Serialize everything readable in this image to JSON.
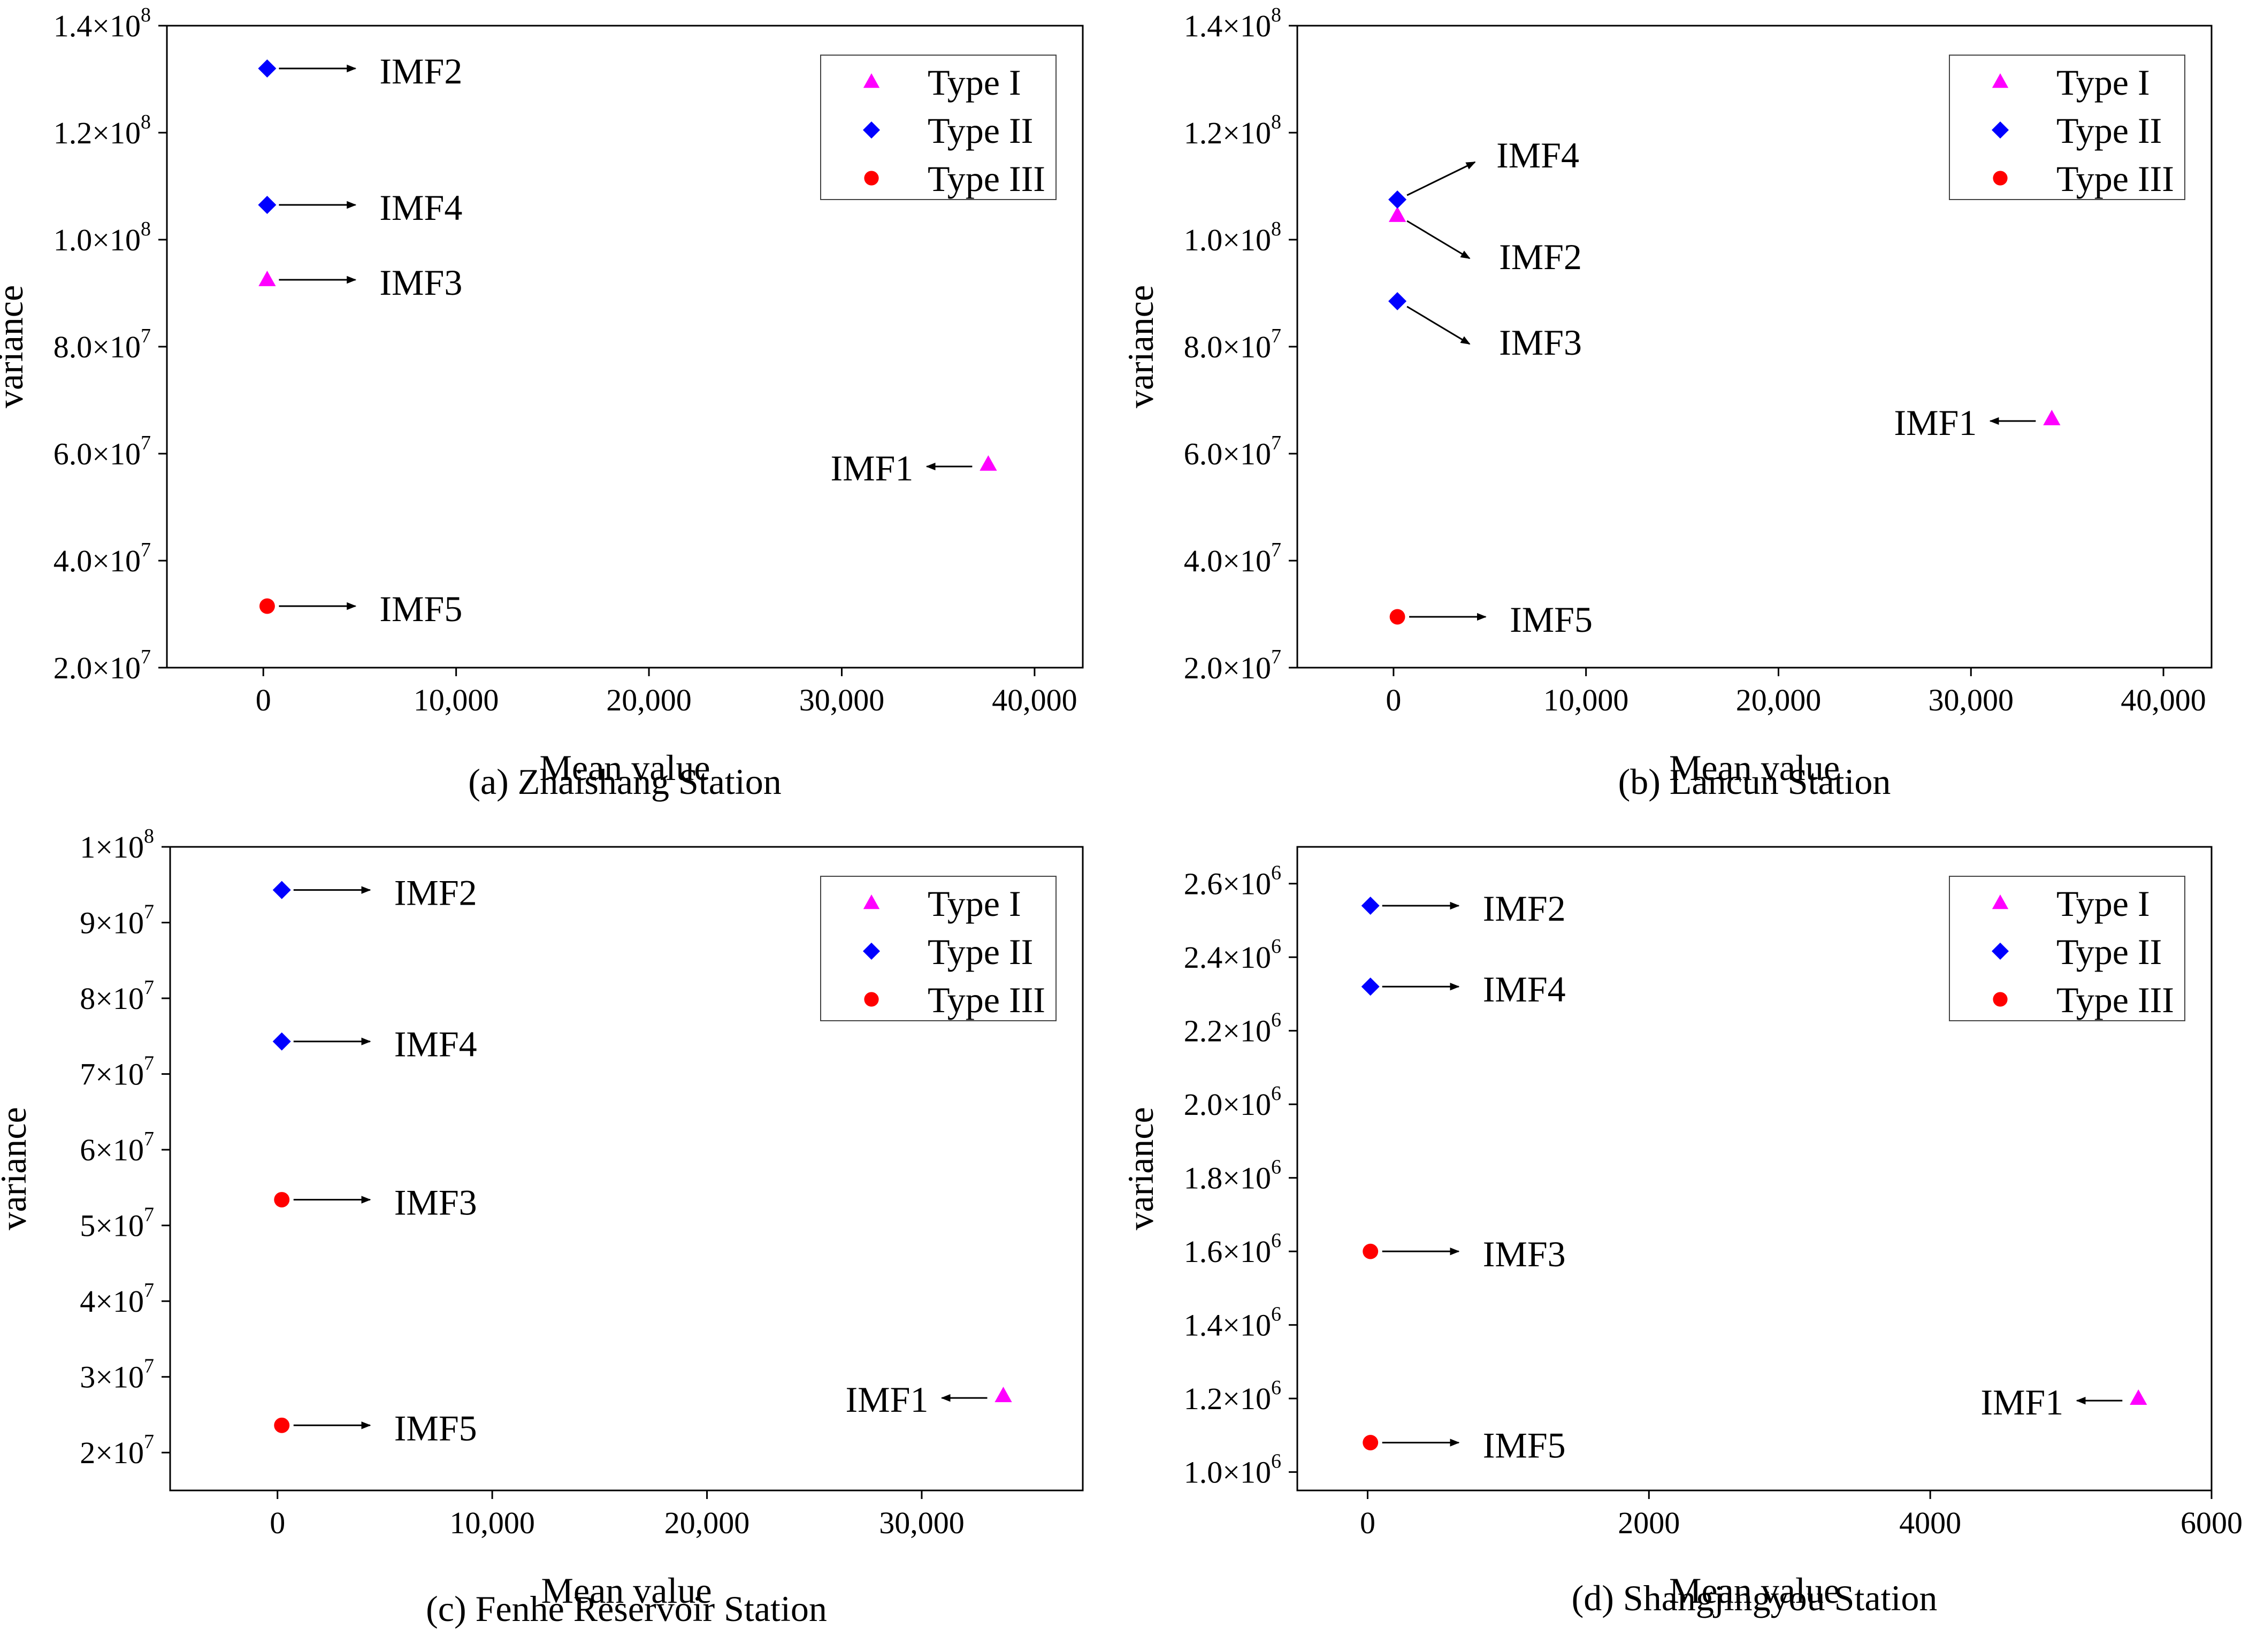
{
  "colors": {
    "type_I": "#ff00ff",
    "type_II": "#0000ff",
    "type_III": "#ff0000",
    "axis": "#000000"
  },
  "chart_data": [
    {
      "type": "scatter",
      "caption": "(a) Zhaishang Station",
      "xlabel": "Mean value",
      "ylabel": "variance",
      "xlim": [
        -5000,
        42500
      ],
      "ylim": [
        20000000,
        140000000
      ],
      "xticks": [
        0,
        10000,
        20000,
        30000,
        40000
      ],
      "xtick_labels": [
        "0",
        "10,000",
        "20,000",
        "30,000",
        "40,000"
      ],
      "yticks": [
        20000000,
        40000000,
        60000000,
        80000000,
        100000000,
        120000000,
        140000000
      ],
      "ytick_labels": [
        {
          "m": "2.0×10",
          "e": "7"
        },
        {
          "m": "4.0×10",
          "e": "7"
        },
        {
          "m": "6.0×10",
          "e": "7"
        },
        {
          "m": "8.0×10",
          "e": "7"
        },
        {
          "m": "1.0×10",
          "e": "8"
        },
        {
          "m": "1.2×10",
          "e": "8"
        },
        {
          "m": "1.4×10",
          "e": "8"
        }
      ],
      "legend": {
        "position": "top-right",
        "entries": [
          {
            "type": "I",
            "label": "Type I"
          },
          {
            "type": "II",
            "label": "Type II"
          },
          {
            "type": "III",
            "label": "Type III"
          }
        ]
      },
      "points": [
        {
          "label": "IMF1",
          "type": "I",
          "x": 37600,
          "y": 58000000,
          "arrow": "left"
        },
        {
          "label": "IMF2",
          "type": "II",
          "x": 200,
          "y": 132000000,
          "arrow": "right"
        },
        {
          "label": "IMF3",
          "type": "I",
          "x": 200,
          "y": 92500000,
          "arrow": "right"
        },
        {
          "label": "IMF4",
          "type": "II",
          "x": 200,
          "y": 106500000,
          "arrow": "right"
        },
        {
          "label": "IMF5",
          "type": "III",
          "x": 200,
          "y": 31500000,
          "arrow": "right"
        }
      ]
    },
    {
      "type": "scatter",
      "caption": "(b) Lancun Station",
      "xlabel": "Mean value",
      "ylabel": "variance",
      "xlim": [
        -5000,
        42500
      ],
      "ylim": [
        20000000,
        140000000
      ],
      "xticks": [
        0,
        10000,
        20000,
        30000,
        40000
      ],
      "xtick_labels": [
        "0",
        "10,000",
        "20,000",
        "30,000",
        "40,000"
      ],
      "yticks": [
        20000000,
        40000000,
        60000000,
        80000000,
        100000000,
        120000000,
        140000000
      ],
      "ytick_labels": [
        {
          "m": "2.0×10",
          "e": "7"
        },
        {
          "m": "4.0×10",
          "e": "7"
        },
        {
          "m": "6.0×10",
          "e": "7"
        },
        {
          "m": "8.0×10",
          "e": "7"
        },
        {
          "m": "1.0×10",
          "e": "8"
        },
        {
          "m": "1.2×10",
          "e": "8"
        },
        {
          "m": "1.4×10",
          "e": "8"
        }
      ],
      "legend": {
        "position": "top-right",
        "entries": [
          {
            "type": "I",
            "label": "Type I"
          },
          {
            "type": "II",
            "label": "Type II"
          },
          {
            "type": "III",
            "label": "Type III"
          }
        ]
      },
      "points": [
        {
          "label": "IMF1",
          "type": "I",
          "x": 34200,
          "y": 66500000,
          "arrow": "left"
        },
        {
          "label": "IMF2",
          "type": "I",
          "x": 200,
          "y": 104500000,
          "arrow": "down-right"
        },
        {
          "label": "IMF3",
          "type": "II",
          "x": 200,
          "y": 88500000,
          "arrow": "down-right"
        },
        {
          "label": "IMF4",
          "type": "II",
          "x": 200,
          "y": 107500000,
          "arrow": "up-right"
        },
        {
          "label": "IMF5",
          "type": "III",
          "x": 200,
          "y": 29500000,
          "arrow": "right"
        }
      ]
    },
    {
      "type": "scatter",
      "caption": "(c) Fenhe Reservoir Station",
      "xlabel": "Mean value",
      "ylabel": "variance",
      "xlim": [
        -5000,
        37500
      ],
      "ylim": [
        15000000,
        100000000
      ],
      "xticks": [
        0,
        10000,
        20000,
        30000
      ],
      "xtick_labels": [
        "0",
        "10,000",
        "20,000",
        "30,000"
      ],
      "yticks": [
        20000000,
        30000000,
        40000000,
        50000000,
        60000000,
        70000000,
        80000000,
        90000000,
        100000000
      ],
      "ytick_labels": [
        {
          "m": "2×10",
          "e": "7"
        },
        {
          "m": "3×10",
          "e": "7"
        },
        {
          "m": "4×10",
          "e": "7"
        },
        {
          "m": "5×10",
          "e": "7"
        },
        {
          "m": "6×10",
          "e": "7"
        },
        {
          "m": "7×10",
          "e": "7"
        },
        {
          "m": "8×10",
          "e": "7"
        },
        {
          "m": "9×10",
          "e": "7"
        },
        {
          "m": "1×10",
          "e": "8"
        }
      ],
      "legend": {
        "position": "top-right",
        "entries": [
          {
            "type": "I",
            "label": "Type I"
          },
          {
            "type": "II",
            "label": "Type II"
          },
          {
            "type": "III",
            "label": "Type III"
          }
        ]
      },
      "points": [
        {
          "label": "IMF1",
          "type": "I",
          "x": 33800,
          "y": 27500000,
          "arrow": "left"
        },
        {
          "label": "IMF2",
          "type": "II",
          "x": 200,
          "y": 94300000,
          "arrow": "right"
        },
        {
          "label": "IMF3",
          "type": "III",
          "x": 200,
          "y": 53400000,
          "arrow": "right"
        },
        {
          "label": "IMF4",
          "type": "II",
          "x": 200,
          "y": 74300000,
          "arrow": "right"
        },
        {
          "label": "IMF5",
          "type": "III",
          "x": 200,
          "y": 23600000,
          "arrow": "right"
        }
      ]
    },
    {
      "type": "scatter",
      "caption": "(d) Shangjingyou Station",
      "xlabel": "Mean value",
      "ylabel": "variance",
      "xlim": [
        -500,
        6000
      ],
      "ylim": [
        950000,
        2700000
      ],
      "xticks": [
        0,
        2000,
        4000,
        6000
      ],
      "xtick_labels": [
        "0",
        "2000",
        "4000",
        "6000"
      ],
      "yticks": [
        1000000,
        1200000,
        1400000,
        1600000,
        1800000,
        2000000,
        2200000,
        2400000,
        2600000
      ],
      "ytick_labels": [
        {
          "m": "1.0×10",
          "e": "6"
        },
        {
          "m": "1.2×10",
          "e": "6"
        },
        {
          "m": "1.4×10",
          "e": "6"
        },
        {
          "m": "1.6×10",
          "e": "6"
        },
        {
          "m": "1.8×10",
          "e": "6"
        },
        {
          "m": "2.0×10",
          "e": "6"
        },
        {
          "m": "2.2×10",
          "e": "6"
        },
        {
          "m": "2.4×10",
          "e": "6"
        },
        {
          "m": "2.6×10",
          "e": "6"
        }
      ],
      "legend": {
        "position": "top-right",
        "entries": [
          {
            "type": "I",
            "label": "Type I"
          },
          {
            "type": "II",
            "label": "Type II"
          },
          {
            "type": "III",
            "label": "Type III"
          }
        ]
      },
      "points": [
        {
          "label": "IMF1",
          "type": "I",
          "x": 5480,
          "y": 1200000,
          "arrow": "left"
        },
        {
          "label": "IMF2",
          "type": "II",
          "x": 20,
          "y": 2540000,
          "arrow": "right"
        },
        {
          "label": "IMF3",
          "type": "III",
          "x": 20,
          "y": 1600000,
          "arrow": "right"
        },
        {
          "label": "IMF4",
          "type": "II",
          "x": 20,
          "y": 2320000,
          "arrow": "right"
        },
        {
          "label": "IMF5",
          "type": "III",
          "x": 20,
          "y": 1080000,
          "arrow": "right"
        }
      ]
    }
  ]
}
